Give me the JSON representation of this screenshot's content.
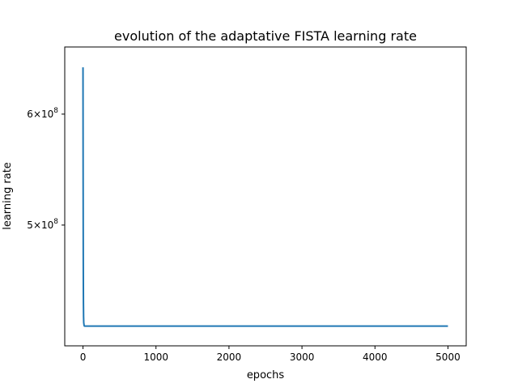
{
  "chart_data": {
    "type": "line",
    "title": "evolution of the adaptative FISTA learning rate",
    "xlabel": "epochs",
    "ylabel": "learning rate",
    "xlim": [
      -250,
      5250
    ],
    "ylim": [
      410000000,
      670000000
    ],
    "yscale": "log",
    "grid": false,
    "legend": "none",
    "xticks": [
      {
        "value": 0,
        "label": "0"
      },
      {
        "value": 1000,
        "label": "1000"
      },
      {
        "value": 2000,
        "label": "2000"
      },
      {
        "value": 3000,
        "label": "3000"
      },
      {
        "value": 4000,
        "label": "4000"
      },
      {
        "value": 5000,
        "label": "5000"
      }
    ],
    "yticks": [
      {
        "value": 500000000,
        "base": "5",
        "exp": "8"
      },
      {
        "value": 600000000,
        "base": "6",
        "exp": "8"
      }
    ],
    "series": [
      {
        "color": "#1f77b4",
        "x": [
          0,
          1,
          2,
          3,
          4,
          5,
          6,
          8,
          10,
          15,
          20,
          50,
          100,
          500,
          1000,
          2000,
          3000,
          4000,
          5000
        ],
        "y": [
          648000000,
          585000000,
          535000000,
          497000000,
          470000000,
          452000000,
          440000000,
          430000000,
          426000000,
          424000000,
          423500000,
          423500000,
          423500000,
          423500000,
          423500000,
          423500000,
          423500000,
          423500000,
          423500000
        ]
      }
    ]
  }
}
